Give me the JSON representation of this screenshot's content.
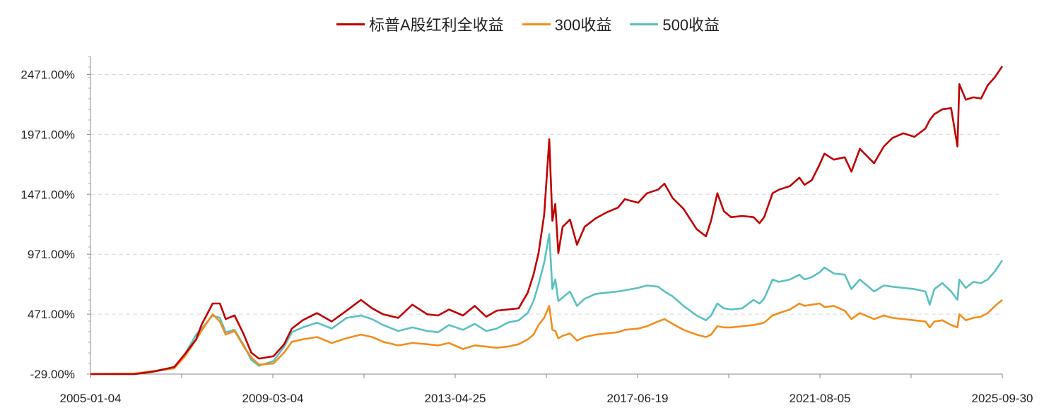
{
  "chart_data": {
    "type": "line",
    "title": "",
    "xlabel": "",
    "ylabel": "",
    "x_tick_labels": [
      "2005-01-04",
      "2009-03-04",
      "2013-04-25",
      "2017-06-19",
      "2021-08-05",
      "2025-09-30"
    ],
    "x_range": [
      "2005-01-04",
      "2025-09-30"
    ],
    "y_tick_labels": [
      "-29.00%",
      "471.00%",
      "971.00%",
      "1471.00%",
      "1971.00%",
      "2471.00%"
    ],
    "ylim": [
      -29,
      2621
    ],
    "grid": "horizontal-dashed",
    "legend_position": "top-center",
    "x": [
      "2005-01-04",
      "2006-01-04",
      "2006-06-01",
      "2006-12-01",
      "2007-03-01",
      "2007-06-01",
      "2007-07-15",
      "2007-10-16",
      "2007-12-15",
      "2008-02-01",
      "2008-04-15",
      "2008-07-01",
      "2008-09-01",
      "2008-11-04",
      "2009-03-04",
      "2009-06-01",
      "2009-08-04",
      "2009-11-01",
      "2010-03-01",
      "2010-07-01",
      "2010-11-01",
      "2011-03-01",
      "2011-06-01",
      "2011-09-01",
      "2012-01-04",
      "2012-05-01",
      "2012-09-01",
      "2012-12-01",
      "2013-03-01",
      "2013-06-25",
      "2013-10-01",
      "2014-01-04",
      "2014-04-01",
      "2014-07-01",
      "2014-10-01",
      "2014-12-15",
      "2015-02-01",
      "2015-03-15",
      "2015-05-01",
      "2015-06-12",
      "2015-07-08",
      "2015-08-01",
      "2015-08-26",
      "2015-10-01",
      "2015-12-01",
      "2016-01-28",
      "2016-04-01",
      "2016-07-01",
      "2016-10-01",
      "2017-01-04",
      "2017-03-01",
      "2017-06-19",
      "2017-09-01",
      "2017-12-01",
      "2018-01-24",
      "2018-04-01",
      "2018-07-01",
      "2018-10-18",
      "2019-01-04",
      "2019-02-15",
      "2019-04-08",
      "2019-06-01",
      "2019-08-01",
      "2019-11-01",
      "2020-02-03",
      "2020-03-23",
      "2020-05-01",
      "2020-07-10",
      "2020-09-01",
      "2020-12-01",
      "2021-02-18",
      "2021-04-01",
      "2021-06-01",
      "2021-08-05",
      "2021-09-14",
      "2021-12-01",
      "2022-03-01",
      "2022-04-26",
      "2022-07-05",
      "2022-10-31",
      "2023-01-20",
      "2023-04-01",
      "2023-07-01",
      "2023-10-01",
      "2024-01-01",
      "2024-02-05",
      "2024-03-15",
      "2024-05-20",
      "2024-08-01",
      "2024-09-23",
      "2024-10-08",
      "2024-12-01",
      "2025-02-01",
      "2025-04-07",
      "2025-06-01",
      "2025-08-01",
      "2025-09-30"
    ],
    "series": [
      {
        "name": "标普A股红利全收益",
        "color": "#c00000",
        "values": [
          -29,
          -29,
          -10,
          30,
          140,
          260,
          380,
          560,
          560,
          430,
          460,
          300,
          150,
          100,
          120,
          220,
          350,
          420,
          480,
          410,
          500,
          590,
          520,
          470,
          440,
          550,
          470,
          460,
          510,
          460,
          540,
          450,
          500,
          510,
          520,
          650,
          800,
          980,
          1300,
          1930,
          1250,
          1390,
          980,
          1200,
          1260,
          1050,
          1200,
          1270,
          1320,
          1360,
          1430,
          1400,
          1480,
          1510,
          1560,
          1440,
          1350,
          1180,
          1120,
          1250,
          1480,
          1330,
          1280,
          1290,
          1280,
          1230,
          1280,
          1480,
          1510,
          1540,
          1610,
          1550,
          1590,
          1720,
          1810,
          1760,
          1780,
          1660,
          1850,
          1730,
          1870,
          1940,
          1980,
          1950,
          2020,
          2090,
          2140,
          2180,
          2190,
          1870,
          2390,
          2260,
          2280,
          2270,
          2380,
          2450,
          2540
        ]
      },
      {
        "name": "300收益",
        "color": "#f28e1c",
        "values": [
          -29,
          -25,
          -5,
          20,
          120,
          260,
          330,
          470,
          410,
          300,
          330,
          200,
          110,
          50,
          60,
          150,
          240,
          260,
          280,
          230,
          270,
          300,
          280,
          240,
          210,
          230,
          220,
          210,
          230,
          180,
          210,
          200,
          190,
          200,
          220,
          260,
          300,
          380,
          440,
          540,
          340,
          330,
          270,
          290,
          310,
          250,
          280,
          300,
          310,
          320,
          340,
          350,
          370,
          410,
          430,
          390,
          340,
          300,
          280,
          300,
          370,
          360,
          360,
          370,
          380,
          390,
          400,
          460,
          480,
          510,
          560,
          540,
          550,
          560,
          530,
          540,
          500,
          430,
          480,
          430,
          460,
          440,
          430,
          420,
          410,
          360,
          410,
          420,
          380,
          360,
          470,
          420,
          440,
          450,
          480,
          540,
          590
        ]
      },
      {
        "name": "500收益",
        "color": "#5bc0c0",
        "values": [
          -29,
          -30,
          -10,
          20,
          140,
          300,
          350,
          460,
          440,
          320,
          340,
          210,
          90,
          40,
          80,
          200,
          320,
          360,
          400,
          350,
          440,
          460,
          430,
          380,
          330,
          360,
          330,
          320,
          380,
          340,
          390,
          330,
          350,
          400,
          420,
          480,
          580,
          720,
          900,
          1140,
          680,
          760,
          580,
          610,
          660,
          540,
          600,
          640,
          650,
          660,
          670,
          690,
          710,
          700,
          660,
          620,
          540,
          460,
          420,
          460,
          560,
          520,
          510,
          520,
          590,
          560,
          600,
          760,
          740,
          760,
          800,
          760,
          780,
          820,
          860,
          810,
          800,
          680,
          760,
          660,
          710,
          700,
          690,
          680,
          660,
          550,
          680,
          730,
          660,
          590,
          760,
          690,
          740,
          730,
          760,
          830,
          920
        ]
      }
    ]
  }
}
